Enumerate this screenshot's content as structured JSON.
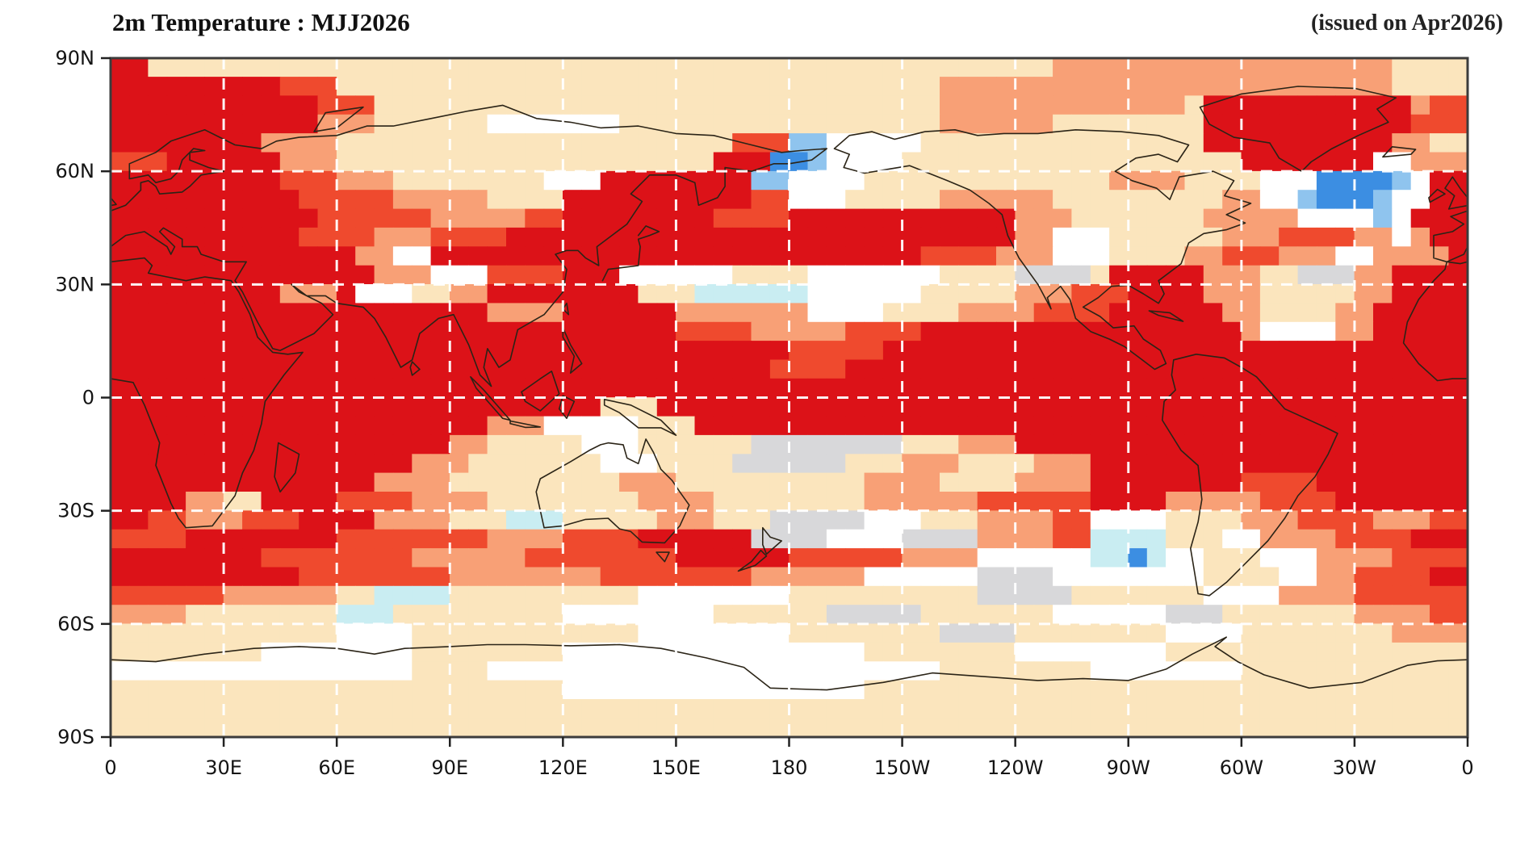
{
  "page": {
    "background": "#ffffff"
  },
  "header": {
    "title_left": "2m Temperature : MJJ2026",
    "title_right": "(issued on Apr2026)"
  },
  "chart_data": {
    "type": "heatmap",
    "title": "2m Temperature : MJJ2026",
    "issued": "(issued on Apr2026)",
    "projection": "equirectangular world map, Pacific-centered, longitude 0 eastward to 360",
    "x_ticks": [
      "0",
      "30E",
      "60E",
      "90E",
      "120E",
      "150E",
      "180",
      "150W",
      "120W",
      "90W",
      "60W",
      "30W",
      "0"
    ],
    "y_ticks": [
      "90N",
      "60N",
      "30N",
      "0",
      "30S",
      "60S",
      "90S"
    ],
    "x_tick_lons": [
      0,
      30,
      60,
      90,
      120,
      150,
      180,
      210,
      240,
      270,
      300,
      330,
      360
    ],
    "y_tick_lats": [
      90,
      60,
      30,
      0,
      -30,
      -60,
      -90
    ],
    "grid_on": true,
    "gridline_lons": [
      30,
      60,
      90,
      120,
      150,
      180,
      210,
      240,
      270,
      300,
      330
    ],
    "gridline_lats": [
      60,
      30,
      0,
      -30,
      -60
    ],
    "cell_size_deg": 5,
    "classes": {
      "D": {
        "name": "dark-red",
        "color": "#dc1218"
      },
      "R": {
        "name": "red-orange",
        "color": "#ef4a2e"
      },
      "S": {
        "name": "salmon",
        "color": "#f8a076"
      },
      "T": {
        "name": "tan",
        "color": "#fbe5bd"
      },
      "W": {
        "name": "white",
        "color": "#ffffff"
      },
      "G": {
        "name": "light-gray",
        "color": "#d8d8da"
      },
      "C": {
        "name": "pale-cyan",
        "color": "#c9edf2"
      },
      "L": {
        "name": "light-blue",
        "color": "#8fc4ee"
      },
      "B": {
        "name": "blue",
        "color": "#3c8ee2"
      }
    },
    "grid_rows_north_to_south": [
      "DDTTTTTTTTTTTTTTTTTTTTTTTTTTTTTTTTTTTTTTTTTTTTTTTTSSSSSSSSSSSSSSSSSSTTTT",
      "DDDDDDDDDRRRTTTTTTTTTTTTTTTTTTTTTTTTTTTTTTTTSSSSSSSSSSSSSSSSSSSSSSSSTTTT",
      "DDDDDDDDDDDRRRTTTTTTTTTTTTTTTTTTTTTTTTTTTTTTSSSSSSSSSSSSSTDDDDDDDDDDDSRR",
      "DDDDDDDDDDDSSSTTTTTTWWWWWWWTTTTTTTTTTTTTTTTTSSSSSSTTTTTTTTDDDDDDDDDDDRRR",
      "DDDDDDDDSSSSTTTTTTTTTTTTTTTTTTTTTRRRLLWWWWWTTTTTTTTTTTTTTTDDDDDDDDDDSSTT",
      "RRRDDDDDDSSSTTTTTTTTTTTTTTTTTTTTDDDBBLWWWWTTTTTTTTTTTTTTTTTTDDDDDDDWWSSS",
      "DDDDDDDDDRRRSSSTTTTTTTTWWWDDDDDDDDLLWWWWTTTTTTTTTTTTTSSSSTTTTWWWBBBBLWDD",
      "DDDDDDDDDDRRRRRSSSSSTTTTDDDDDDDDDDRRWWWTTTTTSSSSSSTTTTTTTTTSSWWLBBBLWWDD",
      "DDDDDDDDDDDRRRRRRSSSSSRRDDDDDDDDRRRRDDDDDDDDDDDDSSSTTTTTTTSSSSSWWWWLWDDD",
      "DDDDDDDDDDRRRRSSSRRRRDDDDDDDDDDDDDDDDDDDDDDDDDDDSSWWWTTTTTTSSSRRRRSSWSDD",
      "DDDDDDDDDDDDDSSWWDDDDDDDDDDDDDDDDDDDDDDDDDDRRRRSSSWWWTTTTSSRRRSSSWWSSSSDD",
      "DDDDDDDDDDDDDDSSSWWWRRRRDDDWWWWWWTTTTWWWWWWWTTTTGGGGTDDDDDSSSTTGGGSSDDDD",
      "DDDDDDDDDSSSDWWWTTSSDDDDDDDDTTTCCCCCCWWWWWWTTTTTSSSRRRDDDDSSSTTTTTSSDDDD",
      "DDDDDDDDDDDDDDDDDDDDSSSSDDDDDDSSSSSSSWWWWTTTTSSSSRRRRDDDDDDSSTTTTSSDDDDD",
      "DDDDDDDDDDDDDDDDDDDDDDDDDDDDDDRRRRSSSSSRRRRDDDDDDDDDDDDDDDDDSWWWWSSDDDDD",
      "DDDDDDDDDDDDDDDDDDDDDDDDDDDDDDDDDDDDRRRRRDDDDDDDDDDDDDDDDDDDDDDDDDDDDDDD",
      "DDDDDDDDDDDDDDDDDDDDDDDDDDDDDDDDDDDRRRRDDDDDDDDDDDDDDDDDDDDDDDDDDDDDDDDD",
      "DDDDDDDDDDDDDDDDDDDDDDDDDDDDDDDDDDDDDDDDDDDDDDDDDDDDDDDDDDDDDDDDDDDDDDDD",
      "DDDDDDDDDDDDDDDDDDDDDDDDDDTTTDDDDDDDDDDDDDDDDDDDDDDDDDDDDDDDDDDDDDDDDDDD",
      "DDDDDDDDDDDDDDDDDDDDSSSWWWWWTTTDDDDDDDDDDDDDDDDDDDDDDDDDDDDDDDDDDDDDDDDD",
      "DDDDDDDDDDDDDDDDDDSSTTTTTWWWTTTTTTGGGGGGGGTTTSSSDDDDDDDDDDDDDDDDDDDDDDDD",
      "DDDDDDDDDDDDDDDDSSSTTTTTTTWWWTTTTGGGGGGTTTSSSTTTTSSSDDDDDDDDDDDDDDDDDDDD",
      "DDDDDDDDDDDDDDSSSSTTTTTTTTTSSSTTTTTTTTTTSSSSTTTTSSSSDDDDDDDDRRRRDDDDDDDD",
      "DDDDSSTTDDDDRRRRSSSSTTTTTTTTSSSSTTTTTTTTSSSSSSRRRRRRDDDDSSSSSRRRRDDDDDDD",
      "DDRRSSSRRRDDDDSSSSTTTCCCTTTTTSSSTTTGGGGGWWWTTTSSSSRRWWWWTTTTSSSRRRRSSSRR",
      "RRRRDDDDDDDDRRRRRRRRSSSSRRRRDDDDDDGGGGWWWWGGGGSSSSRRCCCCTTTWWSSSSRRRRDDD",
      "DDDDDDDDRRRRRRRRSSSSSSRRRRRRRRDDDDDDRRRRRRSSSSWWWWWWCCBCWWTTTWWWSSSSRRRR",
      "DDDDDDDDDDRRRRRRRRSSSSSSSSRRRRRRRRSSSSSSWWWWWWGGGGWWWWWWWWTTTTWWSSRRRRDD",
      "RRRRRRSSSSSSTTCCCCTTTTTTTTTTWWWWWWWWTTTTTTTTTTGGGGGTTTTTTTWWWWSSSSRRRRRR",
      "SSSSTTTTTTTTCCCTTTTTTTTTWWWWWWWWTTTTTTGGGGGTTTTTTTWWWWWWGGGTTTTTTTSSSSRR",
      "TTTTTTTTTTTTWWWWTTTTTTTTTTTTWWWWWWWWTTTTTTTTGGGGTTTTTTTTWWWWTTTTTTTTSSSS",
      "TTTTTTTTWWWWWWWWTTTTTTTTWWWWWWWWWWWWWWWWTTTTTTTTWWWWWWWWTTTTTTTTTTTTTTTT",
      "WWWWWWWWWWWWWWWWTTTTWWWWWWWWWWWWWWWWWWWWWWWWTTTTTTTTWWWWWWWWTTTTTTTTTTTT",
      "TTTTTTTTTTTTTTTTTTTTTTTTWWWWWWWWWWWWWWWWTTTTTTTTTTTTTTTTTTTTTTTTTTTTTTTT",
      "TTTTTTTTTTTTTTTTTTTTTTTTTTTTTTTTTTTTTTTTTTTTTTTTTTTTTTTTTTTTTTTTTTTTTTTT",
      "TTTTTTTTTTTTTTTTTTTTTTTTTTTTTTTTTTTTTTTTTTTTTTTTTTTTTTTTTTTTTTTTTTTTTTTT"
    ]
  },
  "style": {
    "border_color": "#3c3c3c",
    "coast_color": "#2b2417",
    "gridline_color": "rgba(255,255,255,0.95)",
    "tick_color": "#222222",
    "label_color": "#141414"
  }
}
